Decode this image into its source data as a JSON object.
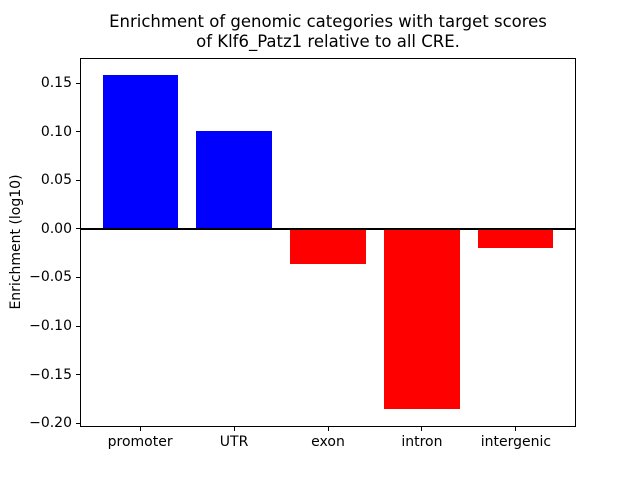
{
  "figure": {
    "background": "#ffffff"
  },
  "chart_data": {
    "type": "bar",
    "title": "Enrichment of genomic categories with target scores\nof Klf6_Patz1 relative to all CRE.",
    "ylabel": "Enrichment (log10)",
    "xlabel": "",
    "categories": [
      "promoter",
      "UTR",
      "exon",
      "intron",
      "intergenic"
    ],
    "values": [
      0.158,
      0.101,
      -0.036,
      -0.185,
      -0.02
    ],
    "bar_colors": [
      "#0000ff",
      "#0000ff",
      "#ff0000",
      "#ff0000",
      "#ff0000"
    ],
    "positive_color": "#0000ff",
    "negative_color": "#ff0000",
    "axis_color": "#000000",
    "ylim": [
      -0.204,
      0.176
    ],
    "xlim": [
      -0.64,
      4.64
    ],
    "yticks": [
      0.15,
      0.1,
      0.05,
      0.0,
      -0.05,
      -0.1,
      -0.15,
      -0.2
    ],
    "ytick_labels": [
      "0.15",
      "0.10",
      "0.05",
      "0.00",
      "−0.05",
      "−0.10",
      "−0.15",
      "−0.20"
    ],
    "bar_width": 0.8,
    "zero_line": true,
    "zero_line_width": 2,
    "grid": false,
    "legend": null
  }
}
